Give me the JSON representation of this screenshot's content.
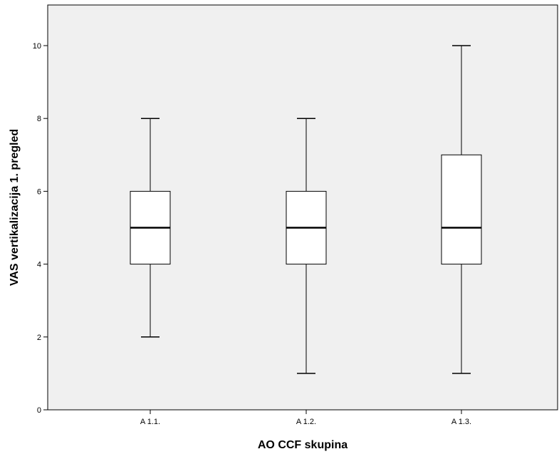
{
  "chart_data": {
    "type": "boxplot",
    "xlabel": "AO CCF skupina",
    "ylabel": "VAS vertikalizacija 1. pregled",
    "ylim": [
      0,
      11
    ],
    "yticks": [
      0,
      2,
      4,
      6,
      8,
      10
    ],
    "grid": false,
    "categories": [
      "A 1.1.",
      "A 1.2.",
      "A 1.3."
    ],
    "boxes": [
      {
        "category": "A 1.1.",
        "min": 2,
        "q1": 4,
        "median": 5,
        "q3": 6,
        "max": 8
      },
      {
        "category": "A 1.2.",
        "min": 1,
        "q1": 4,
        "median": 5,
        "q3": 6,
        "max": 8
      },
      {
        "category": "A 1.3.",
        "min": 1,
        "q1": 4,
        "median": 5,
        "q3": 7,
        "max": 10
      }
    ]
  },
  "colors": {
    "plot_background": "#f0f0f0",
    "box_fill": "#ffffff",
    "line": "#000000"
  }
}
